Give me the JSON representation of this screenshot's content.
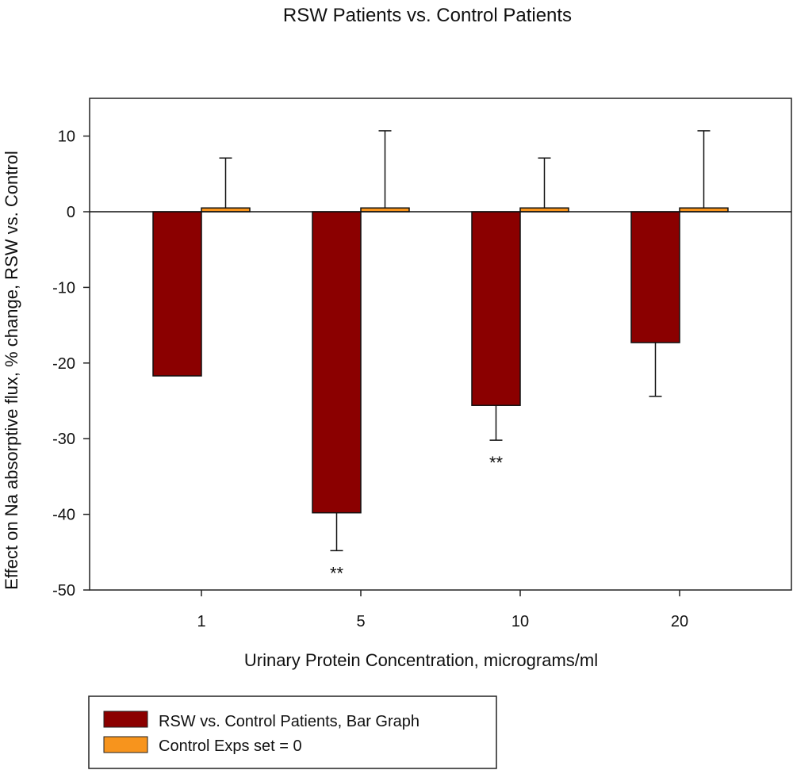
{
  "chart_data": {
    "type": "bar",
    "title": "RSW Patients vs. Control Patients",
    "xlabel": "Urinary Protein Concentration, micrograms/ml",
    "ylabel": "Effect on Na absorptive flux, % change, RSW vs. Control",
    "categories": [
      "1",
      "5",
      "10",
      "20"
    ],
    "ylim": [
      -50,
      15
    ],
    "yticks": [
      10,
      0,
      -10,
      -20,
      -30,
      -40,
      -50
    ],
    "series": [
      {
        "name": "RSW vs. Control Patients, Bar Graph",
        "color": "#8B0000",
        "values": [
          -21.7,
          -39.8,
          -25.6,
          -17.3
        ],
        "errors": [
          0,
          5.0,
          4.6,
          7.1
        ]
      },
      {
        "name": "Control Exps set = 0",
        "color": "#F7941D",
        "values": [
          0.5,
          0.5,
          0.5,
          0.5
        ],
        "errors": [
          6.6,
          10.2,
          6.6,
          10.2
        ]
      }
    ],
    "annotations": [
      {
        "category": "5",
        "text": "**"
      },
      {
        "category": "10",
        "text": "**"
      }
    ],
    "legend_position": "bottom-left"
  }
}
